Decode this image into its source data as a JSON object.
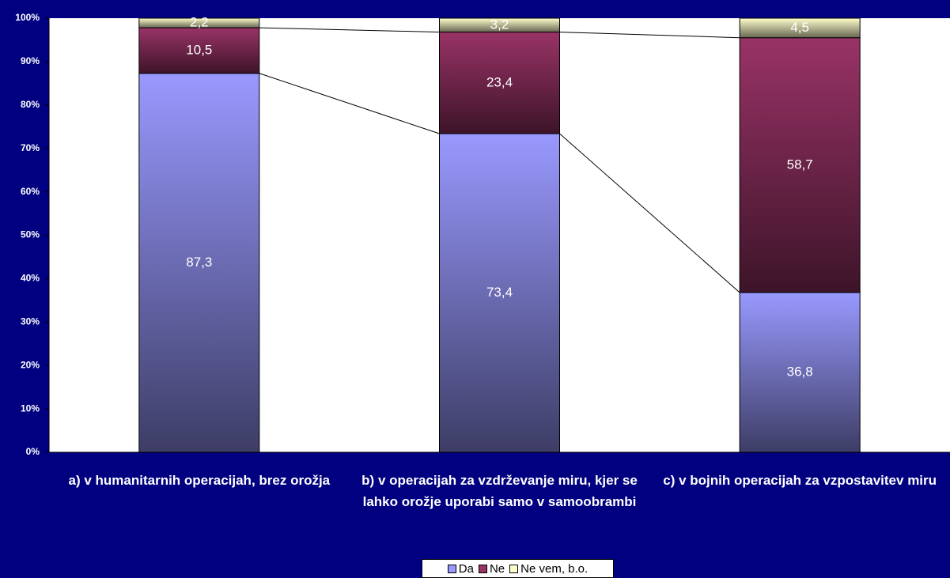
{
  "chart_data": {
    "type": "stacked_bar",
    "categories": [
      "a) v humanitarnih operacijah, brez orožja",
      "b) v operacijah za vzdrževanje miru, kjer se lahko orožje uporabi samo v samoobrambi",
      "c) v bojnih operacijah za vzpostavitev miru"
    ],
    "series": [
      {
        "name": "Da",
        "color": "#9999ff",
        "values": [
          87.3,
          73.4,
          36.8
        ],
        "value_labels": [
          "87,3",
          "73,4",
          "36,8"
        ]
      },
      {
        "name": "Ne",
        "color": "#993366",
        "values": [
          10.5,
          23.4,
          58.7
        ],
        "value_labels": [
          "10,5",
          "23,4",
          "58,7"
        ]
      },
      {
        "name": "Ne vem, b.o.",
        "color": "#ffffcc",
        "values": [
          2.2,
          3.2,
          4.5
        ],
        "value_labels": [
          "2,2",
          "3,2",
          "4,5"
        ]
      }
    ],
    "ylim": [
      0,
      100
    ],
    "yticks": [
      {
        "value": 0,
        "label": "0%"
      },
      {
        "value": 10,
        "label": "10%"
      },
      {
        "value": 20,
        "label": "20%"
      },
      {
        "value": 30,
        "label": "30%"
      },
      {
        "value": 40,
        "label": "40%"
      },
      {
        "value": 50,
        "label": "50%"
      },
      {
        "value": 60,
        "label": "60%"
      },
      {
        "value": 70,
        "label": "70%"
      },
      {
        "value": 80,
        "label": "80%"
      },
      {
        "value": 90,
        "label": "90%"
      },
      {
        "value": 100,
        "label": "100%"
      }
    ],
    "grid": false,
    "legend": "bottom"
  }
}
